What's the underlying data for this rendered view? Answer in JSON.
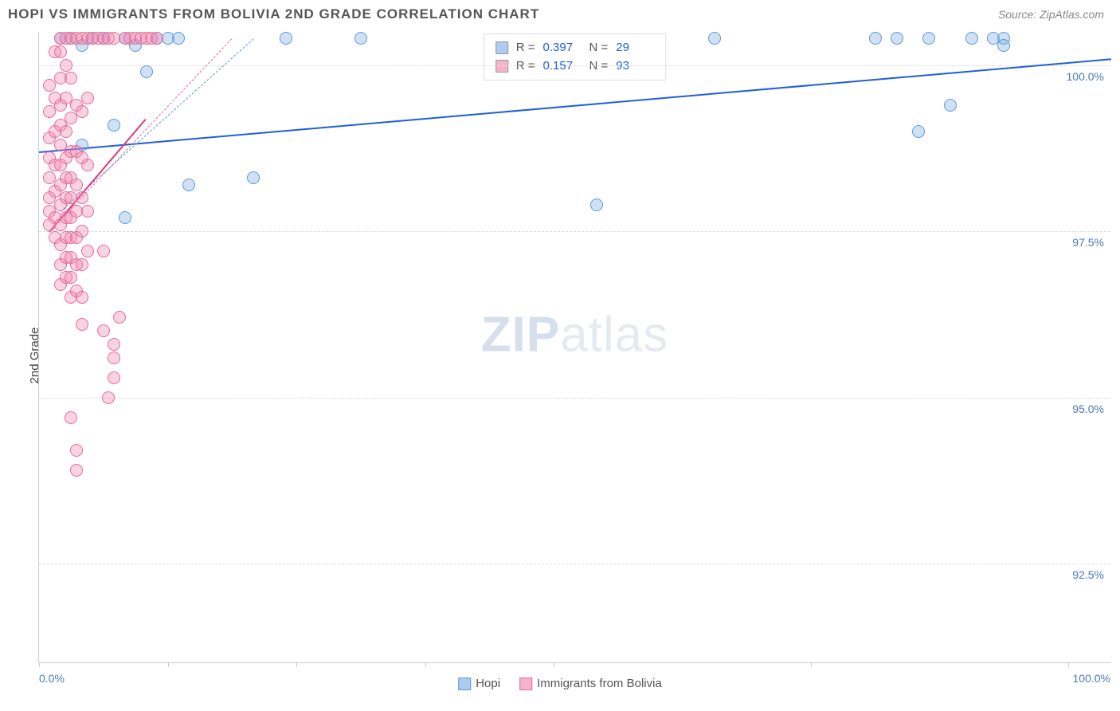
{
  "title": "HOPI VS IMMIGRANTS FROM BOLIVIA 2ND GRADE CORRELATION CHART",
  "source": "Source: ZipAtlas.com",
  "ylabel": "2nd Grade",
  "watermark_zip": "ZIP",
  "watermark_atlas": "atlas",
  "chart": {
    "type": "scatter",
    "background_color": "#ffffff",
    "grid_color": "#dddddd",
    "xlim": [
      0,
      100
    ],
    "ylim": [
      91.0,
      100.5
    ],
    "yticks": [
      92.5,
      95.0,
      97.5,
      100.0
    ],
    "ytick_labels": [
      "92.5%",
      "95.0%",
      "97.5%",
      "100.0%"
    ],
    "xticks": [
      0,
      12,
      24,
      36,
      48,
      72,
      96
    ],
    "x_axis_labels": {
      "left": "0.0%",
      "right": "100.0%"
    },
    "marker_radius": 8,
    "marker_stroke_width": 1.5,
    "series": [
      {
        "name": "Hopi",
        "color_fill": "rgba(120,170,230,0.35)",
        "color_stroke": "#5a9ad8",
        "trend_color": "#1e5fd8",
        "R": "0.397",
        "N": "29",
        "trendline": {
          "x1": 0,
          "y1": 98.7,
          "x2": 100,
          "y2": 100.1,
          "dashed_extension": false
        },
        "dashed_ref": {
          "x1": 2,
          "y1": 97.8,
          "x2": 20,
          "y2": 100.4
        },
        "points": [
          [
            2,
            100.4
          ],
          [
            3,
            100.4
          ],
          [
            4,
            98.8
          ],
          [
            4,
            100.3
          ],
          [
            5,
            100.4
          ],
          [
            6,
            100.4
          ],
          [
            7,
            99.1
          ],
          [
            8,
            100.4
          ],
          [
            8,
            97.7
          ],
          [
            9,
            100.3
          ],
          [
            10,
            99.9
          ],
          [
            11,
            100.4
          ],
          [
            12,
            100.4
          ],
          [
            13,
            100.4
          ],
          [
            14,
            98.2
          ],
          [
            20,
            98.3
          ],
          [
            23,
            100.4
          ],
          [
            30,
            100.4
          ],
          [
            52,
            97.9
          ],
          [
            63,
            100.4
          ],
          [
            78,
            100.4
          ],
          [
            80,
            100.4
          ],
          [
            82,
            99.0
          ],
          [
            83,
            100.4
          ],
          [
            85,
            99.4
          ],
          [
            87,
            100.4
          ],
          [
            89,
            100.4
          ],
          [
            90,
            100.4
          ],
          [
            90,
            100.3
          ]
        ]
      },
      {
        "name": "Immigrants from Bolivia",
        "color_fill": "rgba(240,130,170,0.35)",
        "color_stroke": "#e56a9a",
        "trend_color": "#e03a7a",
        "R": "0.157",
        "N": "93",
        "trendline": {
          "x1": 1,
          "y1": 97.5,
          "x2": 10,
          "y2": 99.2,
          "dashed_extension": true
        },
        "dashed_ref": {
          "x1": 1,
          "y1": 97.5,
          "x2": 18,
          "y2": 100.4
        },
        "points": [
          [
            1,
            97.6
          ],
          [
            1,
            97.8
          ],
          [
            1,
            98.0
          ],
          [
            1,
            98.3
          ],
          [
            1,
            98.6
          ],
          [
            1,
            98.9
          ],
          [
            1,
            99.3
          ],
          [
            1,
            99.7
          ],
          [
            1.5,
            97.4
          ],
          [
            1.5,
            97.7
          ],
          [
            1.5,
            98.1
          ],
          [
            1.5,
            98.5
          ],
          [
            1.5,
            99.0
          ],
          [
            1.5,
            99.5
          ],
          [
            1.5,
            100.2
          ],
          [
            2,
            96.7
          ],
          [
            2,
            97.0
          ],
          [
            2,
            97.3
          ],
          [
            2,
            97.6
          ],
          [
            2,
            97.9
          ],
          [
            2,
            98.2
          ],
          [
            2,
            98.5
          ],
          [
            2,
            98.8
          ],
          [
            2,
            99.1
          ],
          [
            2,
            99.4
          ],
          [
            2,
            99.8
          ],
          [
            2,
            100.2
          ],
          [
            2,
            100.4
          ],
          [
            2.5,
            96.8
          ],
          [
            2.5,
            97.1
          ],
          [
            2.5,
            97.4
          ],
          [
            2.5,
            97.7
          ],
          [
            2.5,
            98.0
          ],
          [
            2.5,
            98.3
          ],
          [
            2.5,
            98.6
          ],
          [
            2.5,
            99.0
          ],
          [
            2.5,
            99.5
          ],
          [
            2.5,
            100.0
          ],
          [
            2.5,
            100.4
          ],
          [
            3,
            94.7
          ],
          [
            3,
            96.5
          ],
          [
            3,
            96.8
          ],
          [
            3,
            97.1
          ],
          [
            3,
            97.4
          ],
          [
            3,
            97.7
          ],
          [
            3,
            98.0
          ],
          [
            3,
            98.3
          ],
          [
            3,
            98.7
          ],
          [
            3,
            99.2
          ],
          [
            3,
            99.8
          ],
          [
            3,
            100.4
          ],
          [
            3.5,
            94.2
          ],
          [
            3.5,
            93.9
          ],
          [
            3.5,
            96.6
          ],
          [
            3.5,
            97.0
          ],
          [
            3.5,
            97.4
          ],
          [
            3.5,
            97.8
          ],
          [
            3.5,
            98.2
          ],
          [
            3.5,
            98.7
          ],
          [
            3.5,
            99.4
          ],
          [
            3.5,
            100.4
          ],
          [
            4,
            96.1
          ],
          [
            4,
            96.5
          ],
          [
            4,
            97.0
          ],
          [
            4,
            97.5
          ],
          [
            4,
            98.0
          ],
          [
            4,
            98.6
          ],
          [
            4,
            99.3
          ],
          [
            4,
            100.4
          ],
          [
            4.5,
            97.2
          ],
          [
            4.5,
            97.8
          ],
          [
            4.5,
            98.5
          ],
          [
            4.5,
            99.5
          ],
          [
            4.5,
            100.4
          ],
          [
            5,
            100.4
          ],
          [
            5.5,
            100.4
          ],
          [
            6,
            96.0
          ],
          [
            6,
            97.2
          ],
          [
            6,
            100.4
          ],
          [
            6.5,
            95.0
          ],
          [
            6.5,
            100.4
          ],
          [
            7,
            95.6
          ],
          [
            7,
            95.8
          ],
          [
            7,
            95.3
          ],
          [
            7,
            100.4
          ],
          [
            7.5,
            96.2
          ],
          [
            8,
            100.4
          ],
          [
            8.5,
            100.4
          ],
          [
            9,
            100.4
          ],
          [
            9.5,
            100.4
          ],
          [
            10,
            100.4
          ],
          [
            10.5,
            100.4
          ],
          [
            11,
            100.4
          ]
        ]
      }
    ]
  },
  "stats_box": {
    "rows": [
      {
        "color": "rgba(120,170,230,0.6)",
        "R_label": "R =",
        "R": "0.397",
        "N_label": "N =",
        "N": "29"
      },
      {
        "color": "rgba(240,130,170,0.6)",
        "R_label": "R =",
        "R": "0.157",
        "N_label": "N =",
        "N": "93"
      }
    ]
  },
  "bottom_legend": [
    {
      "color": "rgba(120,170,230,0.6)",
      "stroke": "#5a9ad8",
      "label": "Hopi"
    },
    {
      "color": "rgba(240,130,170,0.6)",
      "stroke": "#e56a9a",
      "label": "Immigrants from Bolivia"
    }
  ]
}
